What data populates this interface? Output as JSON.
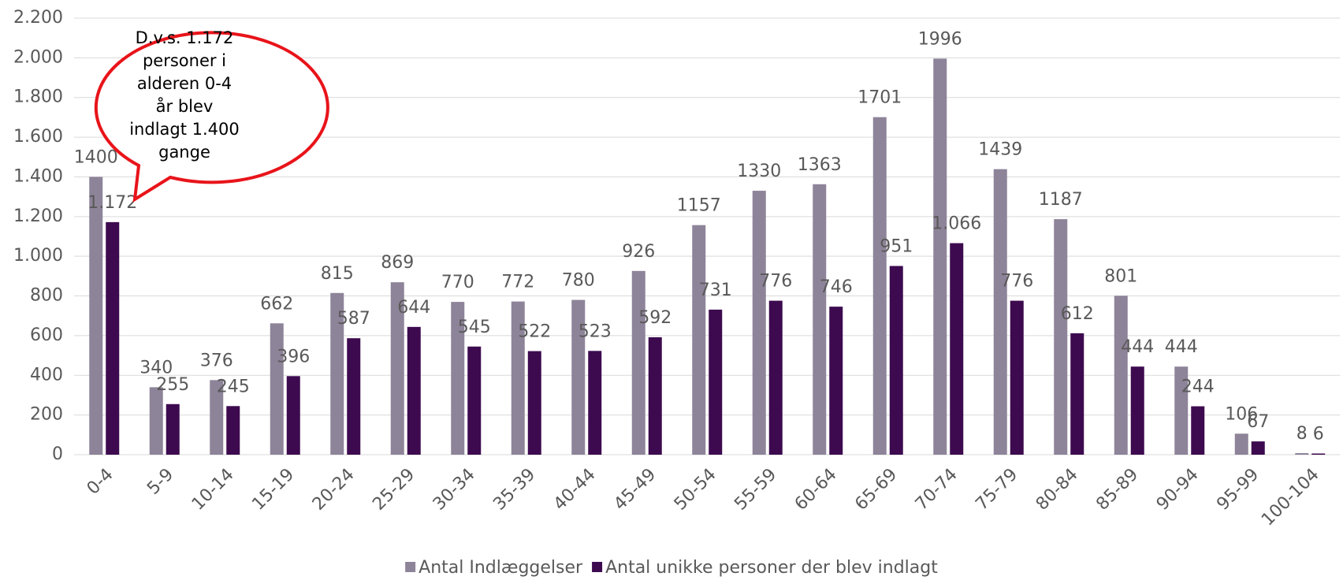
{
  "chart_data": {
    "type": "bar",
    "categories": [
      "0-4",
      "5-9",
      "10-14",
      "15-19",
      "20-24",
      "25-29",
      "30-34",
      "35-39",
      "40-44",
      "45-49",
      "50-54",
      "55-59",
      "60-64",
      "65-69",
      "70-74",
      "75-79",
      "80-84",
      "85-89",
      "90-94",
      "95-99",
      "100-104"
    ],
    "series": [
      {
        "name": "Antal Indlæggelser",
        "color": "#8e8499",
        "values": [
          1400,
          340,
          376,
          662,
          815,
          869,
          770,
          772,
          780,
          926,
          1157,
          1330,
          1363,
          1701,
          1996,
          1439,
          1187,
          801,
          444,
          106,
          8
        ]
      },
      {
        "name": "Antal unikke personer der blev indlagt",
        "color": "#3d0a4f",
        "values": [
          1172,
          255,
          245,
          396,
          587,
          644,
          545,
          522,
          523,
          592,
          731,
          776,
          746,
          951,
          1066,
          776,
          612,
          444,
          244,
          67,
          6
        ],
        "value_labels": [
          "1.172",
          "255",
          "245",
          "396",
          "587",
          "644",
          "545",
          "522",
          "523",
          "592",
          "731",
          "776",
          "746",
          "951",
          "1.066",
          "776",
          "612",
          "444",
          "244",
          "67",
          "6"
        ]
      }
    ],
    "ylim": [
      0,
      2200
    ],
    "yticks": [
      0,
      200,
      400,
      600,
      800,
      {
        "value": 1000,
        "label": "1.000"
      },
      {
        "value": 1200,
        "label": "1.200"
      },
      {
        "value": 1400,
        "label": "1.400"
      },
      {
        "value": 1600,
        "label": "1.600"
      },
      {
        "value": 1800,
        "label": "1.800"
      },
      {
        "value": 2000,
        "label": "2.000"
      },
      {
        "value": 2200,
        "label": "2.200"
      }
    ],
    "grid": true,
    "legend": "bottom",
    "annotation": [
      "D.v.s. 1.172",
      "personer i",
      "alderen 0-4",
      "år blev",
      "indlagt 1.400",
      "gange"
    ]
  }
}
